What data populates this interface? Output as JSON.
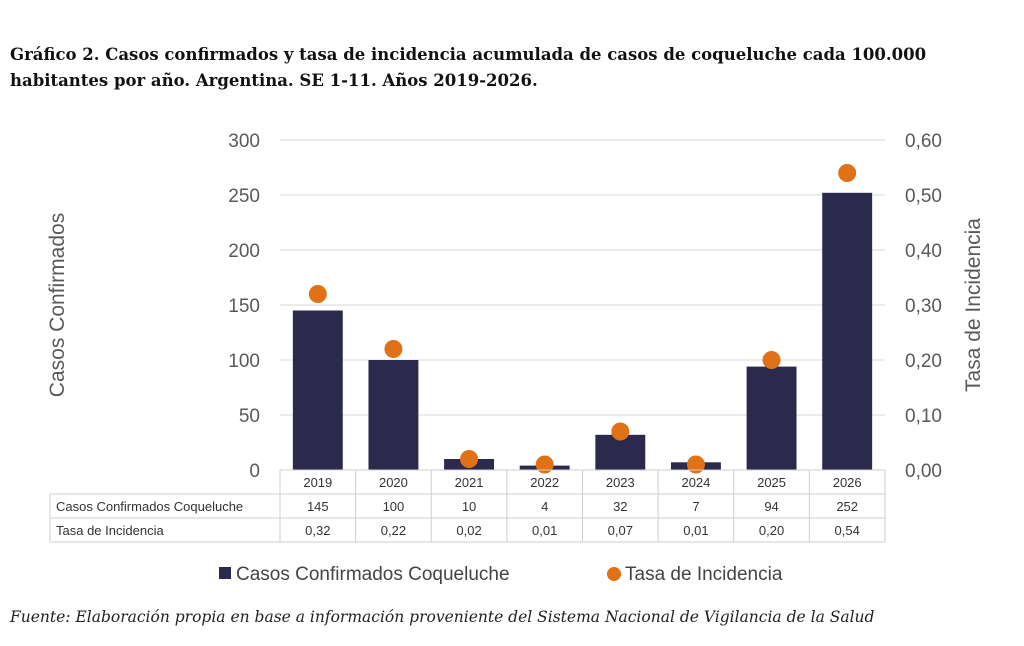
{
  "title": "Gráfico 2. Casos confirmados y tasa de incidencia acumulada de casos de coqueluche cada 100.000 habitantes por año. Argentina. SE 1-11. Años 2019-2026.",
  "source": "Fuente: Elaboración propia en base a información proveniente del Sistema Nacional de Vigilancia de la Salud",
  "colors": {
    "bar": "#2b2a4c",
    "dot": "#e07117",
    "grid": "#d9d9d9",
    "axis_text": "#595959"
  },
  "chart_data": {
    "type": "bar",
    "categories": [
      "2019",
      "2020",
      "2021",
      "2022",
      "2023",
      "2024",
      "2025",
      "2026"
    ],
    "series": [
      {
        "name": "Casos Confirmados Coqueluche",
        "type": "bar",
        "axis": "left",
        "values": [
          145,
          100,
          10,
          4,
          32,
          7,
          94,
          252
        ]
      },
      {
        "name": "Tasa de Incidencia",
        "type": "scatter",
        "axis": "right",
        "values": [
          0.32,
          0.22,
          0.02,
          0.01,
          0.07,
          0.01,
          0.2,
          0.54
        ]
      }
    ],
    "ylabel": "Casos Confirmados",
    "y2label": "Tasa de Incidencia",
    "ylim": [
      0,
      300
    ],
    "y2lim": [
      0,
      0.6
    ],
    "yticks": [
      "0",
      "50",
      "100",
      "150",
      "200",
      "250",
      "300"
    ],
    "y2ticks": [
      "0,00",
      "0,10",
      "0,20",
      "0,30",
      "0,40",
      "0,50",
      "0,60"
    ],
    "table": {
      "rows": [
        {
          "label": "Casos Confirmados Coqueluche",
          "values": [
            "145",
            "100",
            "10",
            "4",
            "32",
            "7",
            "94",
            "252"
          ]
        },
        {
          "label": "Tasa de Incidencia",
          "values": [
            "0,32",
            "0,22",
            "0,02",
            "0,01",
            "0,07",
            "0,01",
            "0,20",
            "0,54"
          ]
        }
      ]
    },
    "legend": [
      "Casos Confirmados Coqueluche",
      "Tasa de Incidencia"
    ],
    "legend_position": "bottom",
    "grid": true
  }
}
